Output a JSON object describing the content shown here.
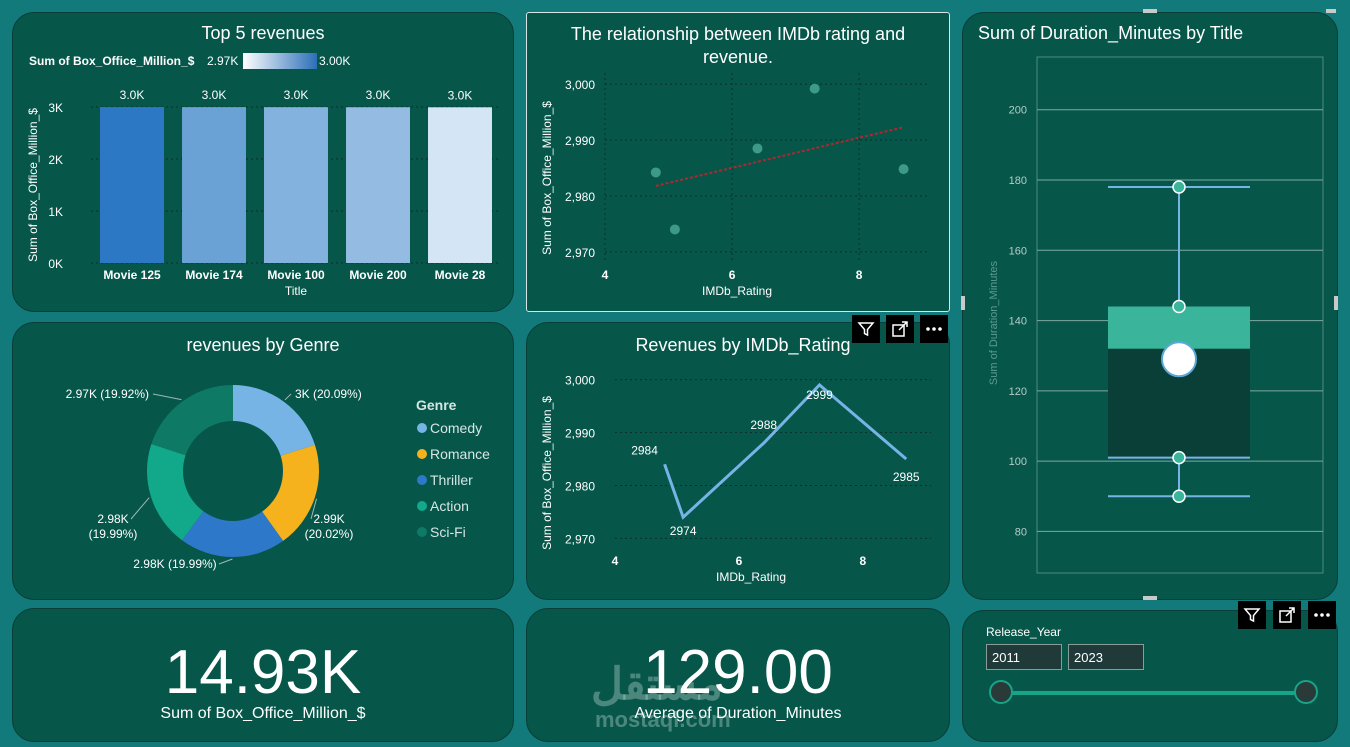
{
  "charts": {
    "top5": {
      "title": "Top 5 revenues"
    },
    "scatter": {
      "title_line1": "The relationship between IMDb rating and",
      "title_line2": "revenue."
    },
    "boxplot": {
      "title": "Sum of Duration_Minutes by Title"
    },
    "donut": {
      "title": "revenues by Genre"
    },
    "line": {
      "title": "Revenues by IMDb_Rating"
    }
  },
  "kpis": {
    "revenue": {
      "value": "14.93K",
      "label": "Sum of Box_Office_Million_$"
    },
    "duration": {
      "value": "129.00",
      "label": "Average of Duration_Minutes"
    }
  },
  "slicer": {
    "title": "Release_Year",
    "start": "2011",
    "end": "2023"
  },
  "watermark": {
    "text": "mostaql.com"
  },
  "toolbar": {
    "filter_icon": "filter-icon",
    "focus_icon": "focus-mode-icon",
    "more_icon": "more-options-icon"
  },
  "colors": {
    "card_bg": "#06564a",
    "page_bg": "#127a7a",
    "comedy": "#76b4e6",
    "romance": "#f5b21c",
    "thriller": "#2e78c9",
    "action": "#12a98a",
    "scifi": "#0e7a66",
    "trend": "#b3262e",
    "line": "#76b4e6",
    "box_upper": "#3bb49c",
    "box_lower": "#0a3f37"
  },
  "chart_data": [
    {
      "type": "bar",
      "title": "Top 5 revenues",
      "xlabel": "Title",
      "ylabel": "Sum of Box_Office_Million_$",
      "legend_title": "Sum of Box_Office_Million_$",
      "legend_min": "2.97K",
      "legend_max": "3.00K",
      "categories": [
        "Movie 125",
        "Movie 174",
        "Movie 100",
        "Movie 200",
        "Movie 28"
      ],
      "values": [
        2999,
        2998,
        2997,
        2996,
        2995
      ],
      "data_labels": [
        "3.0K",
        "3.0K",
        "3.0K",
        "3.0K",
        "3.0K"
      ],
      "bar_colors": [
        "#2c78c4",
        "#6aa2d6",
        "#84b2de",
        "#94bce2",
        "#d4e6f6"
      ],
      "yticks": [
        "0K",
        "1K",
        "2K",
        "3K"
      ],
      "ylim": [
        0,
        3000
      ],
      "grid": true
    },
    {
      "type": "scatter",
      "title": "The relationship between IMDb rating and revenue.",
      "xlabel": "IMDb_Rating",
      "ylabel": "Sum of Box_Office_Million_$",
      "points": [
        {
          "x": 4.8,
          "y": 2984.2
        },
        {
          "x": 5.1,
          "y": 2974
        },
        {
          "x": 6.4,
          "y": 2988.5
        },
        {
          "x": 7.3,
          "y": 2999.2
        },
        {
          "x": 8.7,
          "y": 2984.8
        }
      ],
      "trend_line": [
        {
          "x": 4.8,
          "y": 2981.8
        },
        {
          "x": 8.7,
          "y": 2992.3
        }
      ],
      "xticks": [
        4,
        6,
        8
      ],
      "yticks": [
        "2,970",
        "2,980",
        "2,990",
        "3,000"
      ],
      "xlim": [
        4,
        9.1
      ],
      "ylim": [
        2968,
        3002
      ],
      "grid": true
    },
    {
      "type": "box",
      "title": "Sum of Duration_Minutes by Title",
      "ylabel": "Sum of Duration_Minutes",
      "whisker_max": 178,
      "q3": 144,
      "median": 132,
      "mean": 129,
      "q1": 101,
      "whisker_min": 90,
      "yticks": [
        80,
        100,
        120,
        140,
        160,
        180,
        200
      ],
      "ylim": [
        75,
        215
      ],
      "grid": true
    },
    {
      "type": "pie",
      "title": "revenues by Genre",
      "legend_title": "Genre",
      "legend_position": "right",
      "slices": [
        {
          "label": "Comedy",
          "value": 20.09,
          "data_label": "3K (20.09%)"
        },
        {
          "label": "Romance",
          "value": 20.02,
          "data_label": "2.99K (20.02%)"
        },
        {
          "label": "Thriller",
          "value": 19.99,
          "data_label": "2.98K (19.99%)"
        },
        {
          "label": "Action",
          "value": 19.99,
          "data_label": "2.98K (19.99%)"
        },
        {
          "label": "Sci-Fi",
          "value": 19.92,
          "data_label": "2.97K (19.92%)"
        }
      ]
    },
    {
      "type": "line",
      "title": "Revenues by IMDb_Rating",
      "xlabel": "IMDb_Rating",
      "ylabel": "Sum of Box_Office_Million_$",
      "points": [
        {
          "x": 4.8,
          "y": 2984,
          "label": "2984"
        },
        {
          "x": 5.1,
          "y": 2974,
          "label": "2974"
        },
        {
          "x": 6.4,
          "y": 2988,
          "label": "2988"
        },
        {
          "x": 7.3,
          "y": 2999,
          "label": "2999"
        },
        {
          "x": 8.7,
          "y": 2985,
          "label": "2985"
        }
      ],
      "xticks": [
        4,
        6,
        8
      ],
      "yticks": [
        "2,970",
        "2,980",
        "2,990",
        "3,000"
      ],
      "xlim": [
        4,
        9.1
      ],
      "ylim": [
        2968,
        3002
      ],
      "grid": true
    }
  ]
}
